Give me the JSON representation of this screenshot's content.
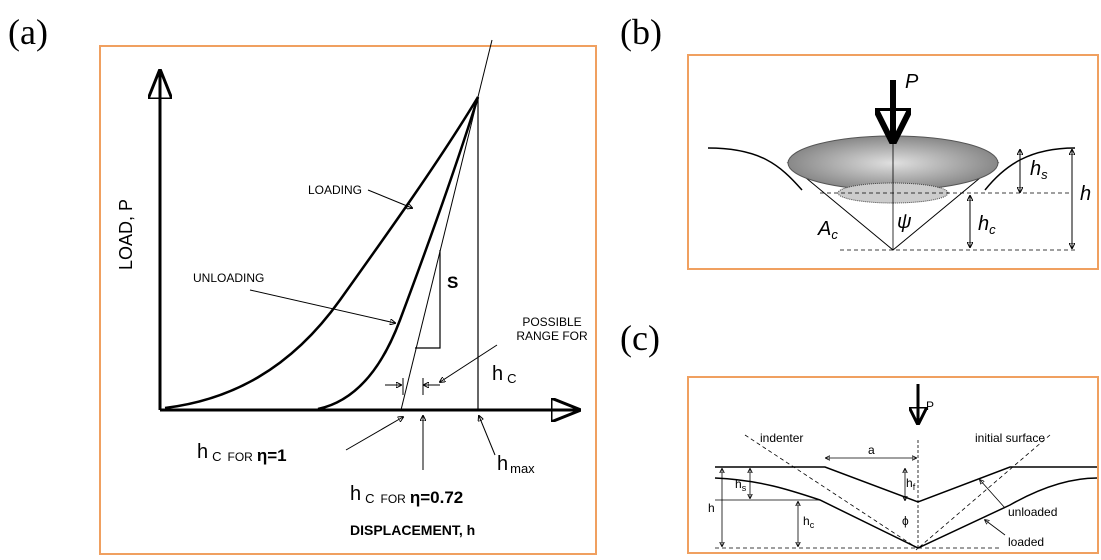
{
  "panel_a": {
    "label": "(a)",
    "y_axis": "LOAD, P",
    "x_axis": "DISPLACEMENT, h",
    "loading": "LOADING",
    "unloading": "UNLOADING",
    "s": "S",
    "range_line1": "POSSIBLE",
    "range_line2": "RANGE FOR",
    "range_h": "h",
    "range_sub": "C",
    "eta1_h": "h",
    "eta1_sub": "C",
    "eta1_for": "FOR",
    "eta1": "η=1",
    "eta072_h": "h",
    "eta072_sub": "C",
    "eta072_for": "FOR",
    "eta072": "η=0.72",
    "hmax_h": "h",
    "hmax_sub": "max"
  },
  "panel_b": {
    "label": "(b)",
    "p": "P",
    "hs_h": "h",
    "hs_sub": "s",
    "h": "h",
    "hc_h": "h",
    "hc_sub": "c",
    "ac_a": "A",
    "ac_sub": "c",
    "psi": "ψ"
  },
  "panel_c": {
    "label": "(c)",
    "p": "P",
    "indenter": "indenter",
    "a": "a",
    "initial_surface": "initial surface",
    "hf_h": "h",
    "hf_sub": "f",
    "hs_h": "h",
    "hs_sub": "s",
    "h": "h",
    "hc_h": "h",
    "hc_sub": "c",
    "phi": "ϕ",
    "unloaded": "unloaded",
    "loaded": "loaded"
  }
}
